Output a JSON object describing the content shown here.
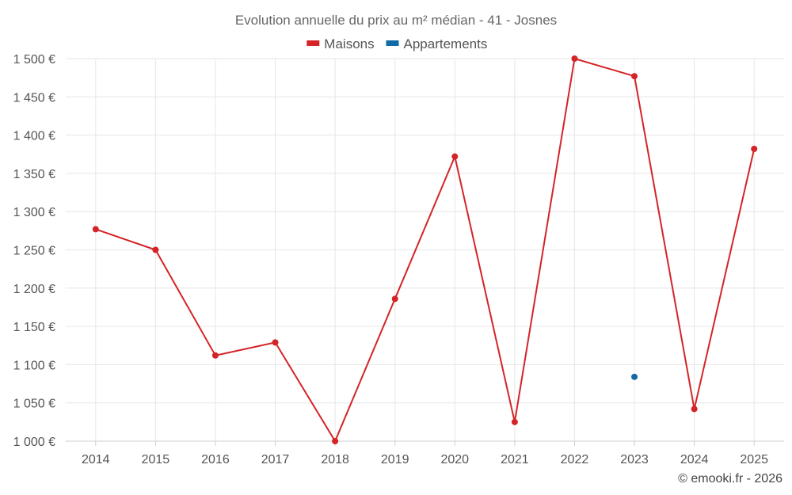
{
  "chart_data": {
    "type": "line",
    "title": "Evolution annuelle du prix au m² médian - 41 - Josnes",
    "xlabel": "",
    "ylabel": "",
    "categories": [
      "2014",
      "2015",
      "2016",
      "2017",
      "2018",
      "2019",
      "2020",
      "2021",
      "2022",
      "2023",
      "2024",
      "2025"
    ],
    "ylim": [
      1000,
      1500
    ],
    "yticks": [
      1000,
      1050,
      1100,
      1150,
      1200,
      1250,
      1300,
      1350,
      1400,
      1450,
      1500
    ],
    "ytick_labels": [
      "1 000 €",
      "1 050 €",
      "1 100 €",
      "1 150 €",
      "1 200 €",
      "1 250 €",
      "1 300 €",
      "1 350 €",
      "1 400 €",
      "1 450 €",
      "1 500 €"
    ],
    "grid": true,
    "legend_position": "top-center",
    "series": [
      {
        "name": "Maisons",
        "color": "#d42428",
        "values": [
          1277,
          1250,
          1112,
          1129,
          1000,
          1186,
          1372,
          1025,
          1500,
          1477,
          1042,
          1382
        ]
      },
      {
        "name": "Appartements",
        "color": "#0f6aa5",
        "values": [
          null,
          null,
          null,
          null,
          null,
          null,
          null,
          null,
          null,
          1084,
          null,
          null
        ]
      }
    ]
  },
  "credit": "© emooki.fr - 2026"
}
